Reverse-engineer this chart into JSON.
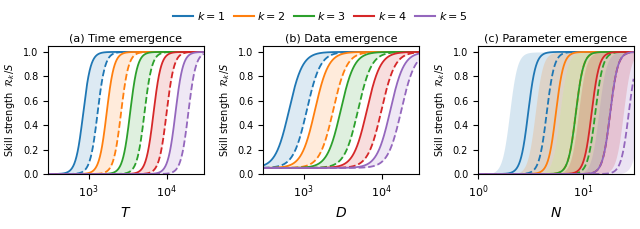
{
  "colors": [
    "#1f77b4",
    "#ff7f0e",
    "#2ca02c",
    "#d62728",
    "#9467bd"
  ],
  "k_labels": [
    "$k=1$",
    "$k=2$",
    "$k=3$",
    "$k=4$",
    "$k=5$"
  ],
  "panel_titles": [
    "(a) Time emergence",
    "(b) Data emergence",
    "(c) Parameter emergence"
  ],
  "xlabels": [
    "$T$",
    "$D$",
    "$N$"
  ],
  "ylabel": "Skill strength  $\\mathcal{R}_k/S$",
  "panel_a": {
    "xlim": [
      300,
      30000
    ],
    "xticks": [
      1000,
      10000
    ],
    "xticklabels": [
      "$10^3$",
      "$10^4$"
    ],
    "solid_centers": [
      850,
      1700,
      3400,
      6800,
      13000
    ],
    "dashed_centers": [
      1300,
      2600,
      5200,
      10000,
      19000
    ],
    "steepness": 9.0
  },
  "panel_b": {
    "xlim": [
      300,
      30000
    ],
    "xticks": [
      1000,
      10000
    ],
    "xticklabels": [
      "$10^3$",
      "$10^4$"
    ],
    "solid_centers": [
      650,
      1400,
      3000,
      6500,
      13000
    ],
    "dashed_centers": [
      1100,
      2400,
      5000,
      10000,
      18000
    ],
    "steepness": 5.0,
    "baseline": 0.05
  },
  "panel_c": {
    "xlim_log": [
      0,
      1.5
    ],
    "xlim": [
      1.0,
      30.0
    ],
    "xticks": [
      1,
      10
    ],
    "xticklabels": [
      "$10^0$",
      "$10^1$"
    ],
    "solid_centers": [
      3.0,
      5.5,
      8.5,
      12.0,
      18.0
    ],
    "dashed_centers": [
      4.5,
      8.5,
      13.0,
      18.0,
      27.0
    ],
    "shade_low_centers": [
      2.0,
      3.5,
      6.0,
      9.0,
      14.0
    ],
    "shade_high_centers": [
      6.0,
      12.0,
      18.0,
      24.0,
      35.0
    ],
    "steepness": 12.0
  },
  "ylim": [
    0.0,
    1.05
  ],
  "yticks": [
    0.0,
    0.2,
    0.4,
    0.6,
    0.8,
    1.0
  ],
  "yticklabels": [
    "0.0",
    "0.2",
    "0.4",
    "0.6",
    "0.8",
    "1.0"
  ]
}
